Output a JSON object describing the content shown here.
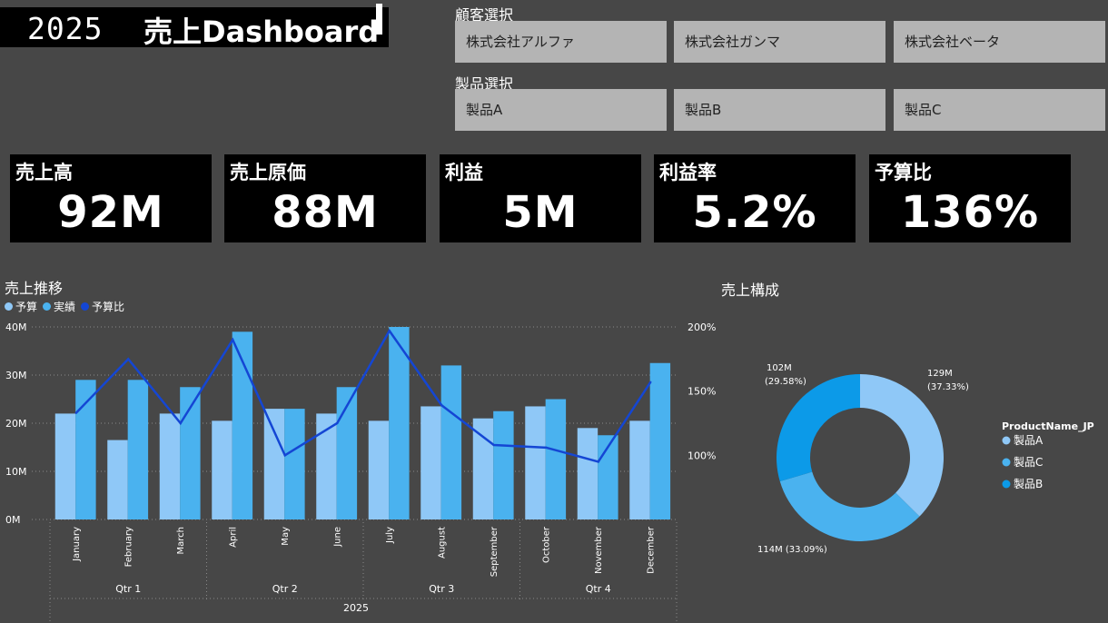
{
  "header": {
    "year": "2025",
    "title": "売上Dashboard"
  },
  "customer_slicer": {
    "label": "顧客選択",
    "options": [
      "株式会社アルファ",
      "株式会社ガンマ",
      "株式会社ベータ"
    ]
  },
  "product_slicer": {
    "label": "製品選択",
    "options": [
      "製品A",
      "製品B",
      "製品C"
    ]
  },
  "kpis": [
    {
      "label": "売上高",
      "value": "92M"
    },
    {
      "label": "売上原価",
      "value": "88M"
    },
    {
      "label": "利益",
      "value": "5M"
    },
    {
      "label": "利益率",
      "value": "5.2%"
    },
    {
      "label": "予算比",
      "value": "136%"
    }
  ],
  "colors": {
    "background": "#474747",
    "budget": "#8fc8f7",
    "actual": "#4ab2ef",
    "ratio": "#1446d4",
    "donut_a": "#8fc8f7",
    "donut_c": "#4ab2ef",
    "donut_b": "#0c9ae8"
  },
  "chart_data": [
    {
      "type": "bar",
      "title": "売上推移",
      "legend": [
        "予算",
        "実績",
        "予算比"
      ],
      "legend_position": "top-left",
      "categories": [
        "January",
        "February",
        "March",
        "April",
        "May",
        "June",
        "July",
        "August",
        "September",
        "October",
        "November",
        "December"
      ],
      "quarters": [
        "Qtr 1",
        "Qtr 2",
        "Qtr 3",
        "Qtr 4"
      ],
      "year_label": "2025",
      "series": [
        {
          "name": "予算",
          "values": [
            22,
            16.5,
            22,
            20.5,
            23,
            22,
            20.5,
            23.5,
            21,
            23.5,
            19,
            20.5
          ]
        },
        {
          "name": "実績",
          "values": [
            29,
            29,
            27.5,
            39,
            23,
            27.5,
            40,
            32,
            22.5,
            25,
            17.5,
            32.5
          ]
        },
        {
          "name": "予算比",
          "axis": "right",
          "values": [
            133,
            175,
            125,
            190,
            100,
            125,
            197,
            139,
            108,
            106,
            95,
            157
          ]
        }
      ],
      "y_left_ticks": [
        "0M",
        "10M",
        "20M",
        "30M",
        "40M"
      ],
      "ylim": [
        0,
        40
      ],
      "y_right_ticks": [
        "100%",
        "150%",
        "200%"
      ],
      "y_right_lim": [
        50,
        200
      ],
      "grid": true
    },
    {
      "type": "pie",
      "title": "売上構成",
      "legend_title": "ProductName_JP",
      "legend_position": "right",
      "slices": [
        {
          "name": "製品A",
          "value": 129,
          "label": "129M",
          "pct": "(37.33%)"
        },
        {
          "name": "製品C",
          "value": 114,
          "label": "114M (33.09%)",
          "pct": ""
        },
        {
          "name": "製品B",
          "value": 102,
          "label": "102M",
          "pct": "(29.58%)"
        }
      ]
    }
  ]
}
